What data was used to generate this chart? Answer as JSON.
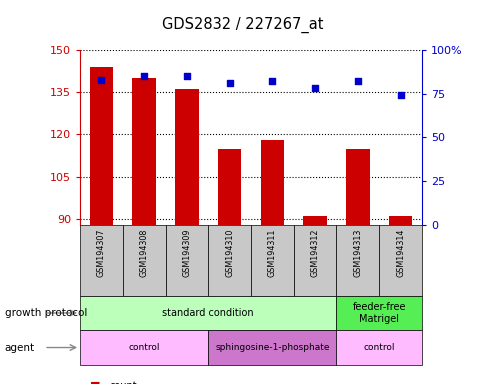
{
  "title": "GDS2832 / 227267_at",
  "samples": [
    "GSM194307",
    "GSM194308",
    "GSM194309",
    "GSM194310",
    "GSM194311",
    "GSM194312",
    "GSM194313",
    "GSM194314"
  ],
  "counts": [
    144,
    140,
    136,
    115,
    118,
    91,
    115,
    91
  ],
  "percentile_ranks": [
    83,
    85,
    85,
    81,
    82,
    78,
    82,
    74
  ],
  "ylim_left": [
    88,
    150
  ],
  "ylim_right": [
    0,
    100
  ],
  "yticks_left": [
    90,
    105,
    120,
    135,
    150
  ],
  "yticks_right": [
    0,
    25,
    50,
    75,
    100
  ],
  "bar_color": "#cc0000",
  "dot_color": "#0000cc",
  "growth_protocol_labels": [
    {
      "text": "standard condition",
      "start": 0,
      "end": 6,
      "color": "#bbffbb"
    },
    {
      "text": "feeder-free\nMatrigel",
      "start": 6,
      "end": 8,
      "color": "#55ee55"
    }
  ],
  "agent_labels": [
    {
      "text": "control",
      "start": 0,
      "end": 3,
      "color": "#ffbbff"
    },
    {
      "text": "sphingosine-1-phosphate",
      "start": 3,
      "end": 6,
      "color": "#cc77cc"
    },
    {
      "text": "control",
      "start": 6,
      "end": 8,
      "color": "#ffbbff"
    }
  ],
  "legend_count_color": "#cc0000",
  "legend_dot_color": "#0000cc",
  "left_tick_color": "#cc0000",
  "right_tick_color": "#0000cc",
  "row_label_growth": "growth protocol",
  "row_label_agent": "agent",
  "sample_row_color": "#c8c8c8",
  "figsize": [
    4.85,
    3.84
  ],
  "dpi": 100
}
